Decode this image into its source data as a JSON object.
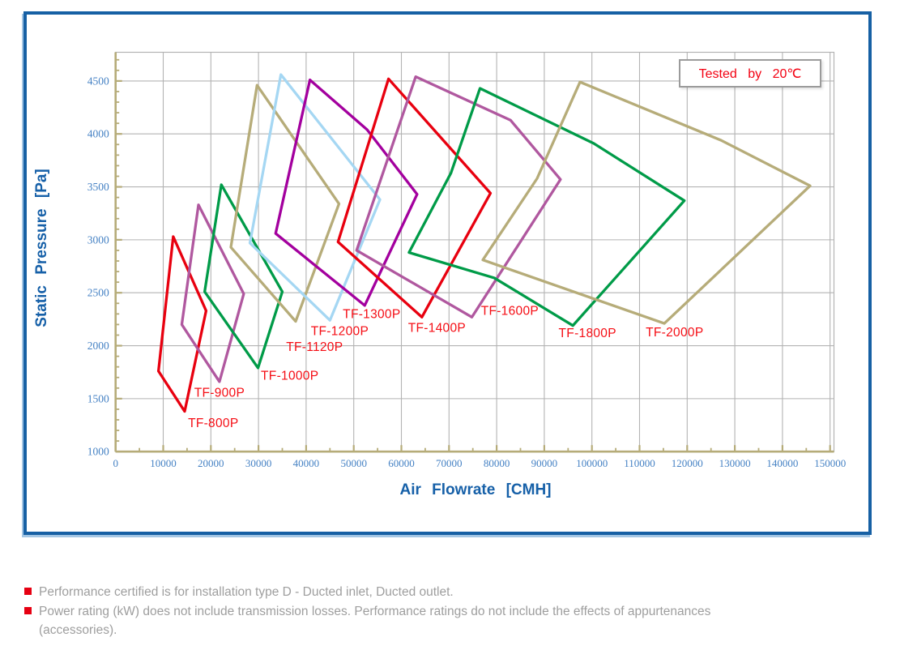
{
  "chart_data": {
    "type": "area",
    "subtype": "fan-operating-envelopes",
    "title": "",
    "legend_note": "Tested by 20℃",
    "xlabel": "Air Flowrate [CMH]",
    "ylabel": "Static Pressure [Pa]",
    "x_axis": {
      "title": "Air Flowrate [CMH]",
      "min": 0,
      "max": 151000,
      "ticks": [
        0,
        10000,
        20000,
        30000,
        40000,
        50000,
        60000,
        70000,
        80000,
        90000,
        100000,
        110000,
        120000,
        130000,
        140000,
        150000
      ],
      "minor_step": 5000,
      "grid": true
    },
    "y_axis": {
      "title": "Static Pressure [Pa]",
      "min": 1000,
      "max": 4770,
      "ticks": [
        1000,
        1500,
        2000,
        2500,
        3000,
        3500,
        4000,
        4500
      ],
      "minor_step": 100,
      "grid": true
    },
    "series": [
      {
        "name": "TF-800P",
        "color": "#e8000f",
        "label_pos": [
          15200,
          1230
        ],
        "envelope_cmh_pa": [
          [
            12100,
            3030
          ],
          [
            19000,
            2330
          ],
          [
            14500,
            1380
          ],
          [
            9000,
            1760
          ]
        ]
      },
      {
        "name": "TF-900P",
        "color": "#b0589f",
        "label_pos": [
          16500,
          1520
        ],
        "envelope_cmh_pa": [
          [
            17400,
            3330
          ],
          [
            26900,
            2490
          ],
          [
            21800,
            1660
          ],
          [
            13900,
            2200
          ]
        ]
      },
      {
        "name": "TF-1000P",
        "color": "#009b48",
        "label_pos": [
          30500,
          1680
        ],
        "envelope_cmh_pa": [
          [
            22200,
            3520
          ],
          [
            35000,
            2510
          ],
          [
            29900,
            1790
          ],
          [
            18700,
            2510
          ]
        ]
      },
      {
        "name": "TF-1120P",
        "color": "#b6ac79",
        "label_pos": [
          35800,
          1950
        ],
        "envelope_cmh_pa": [
          [
            29700,
            4460
          ],
          [
            46900,
            3340
          ],
          [
            37800,
            2230
          ],
          [
            24200,
            2930
          ]
        ]
      },
      {
        "name": "TF-1200P",
        "color": "#a5d7f3",
        "label_pos": [
          41000,
          2100
        ],
        "envelope_cmh_pa": [
          [
            34700,
            4560
          ],
          [
            55500,
            3380
          ],
          [
            45000,
            2240
          ],
          [
            28200,
            2970
          ]
        ]
      },
      {
        "name": "TF-1300P",
        "color": "#a3009e",
        "label_pos": [
          47700,
          2260
        ],
        "envelope_cmh_pa": [
          [
            40800,
            4510
          ],
          [
            52800,
            4040
          ],
          [
            63300,
            3430
          ],
          [
            52300,
            2380
          ],
          [
            33600,
            3060
          ]
        ]
      },
      {
        "name": "TF-1400P",
        "color": "#e8000f",
        "label_pos": [
          61400,
          2130
        ],
        "envelope_cmh_pa": [
          [
            57300,
            4520
          ],
          [
            78700,
            3440
          ],
          [
            64300,
            2270
          ],
          [
            46700,
            2980
          ]
        ]
      },
      {
        "name": "TF-1600P",
        "color": "#b0589f",
        "label_pos": [
          76700,
          2290
        ],
        "envelope_cmh_pa": [
          [
            63000,
            4540
          ],
          [
            82900,
            4130
          ],
          [
            93400,
            3570
          ],
          [
            74800,
            2270
          ],
          [
            50600,
            2900
          ]
        ]
      },
      {
        "name": "TF-1800P",
        "color": "#009b48",
        "label_pos": [
          93000,
          2080
        ],
        "envelope_cmh_pa": [
          [
            76500,
            4430
          ],
          [
            100400,
            3910
          ],
          [
            119400,
            3370
          ],
          [
            96000,
            2190
          ],
          [
            79500,
            2640
          ],
          [
            61600,
            2880
          ],
          [
            70400,
            3630
          ]
        ]
      },
      {
        "name": "TF-2000P",
        "color": "#b6ac79",
        "label_pos": [
          111300,
          2090
        ],
        "envelope_cmh_pa": [
          [
            97500,
            4490
          ],
          [
            127100,
            3940
          ],
          [
            145800,
            3510
          ],
          [
            115200,
            2210
          ],
          [
            77100,
            2810
          ],
          [
            88500,
            3580
          ]
        ]
      }
    ],
    "style": {
      "grid_color": "#b3b3b3",
      "spine_color": "#b6ac79",
      "tick_label_color": "#4682c4",
      "axis_title_color": "#1660a8",
      "series_label_color": "#f50d14",
      "line_width": 3.3
    }
  },
  "notes": {
    "bullet_color": "#e60012",
    "items": [
      "Performance certified is for installation type D - Ducted inlet, Ducted outlet.",
      "Power rating (kW) does not include transmission losses. Performance ratings do not include the effects of appurtenances (accessories)."
    ]
  }
}
